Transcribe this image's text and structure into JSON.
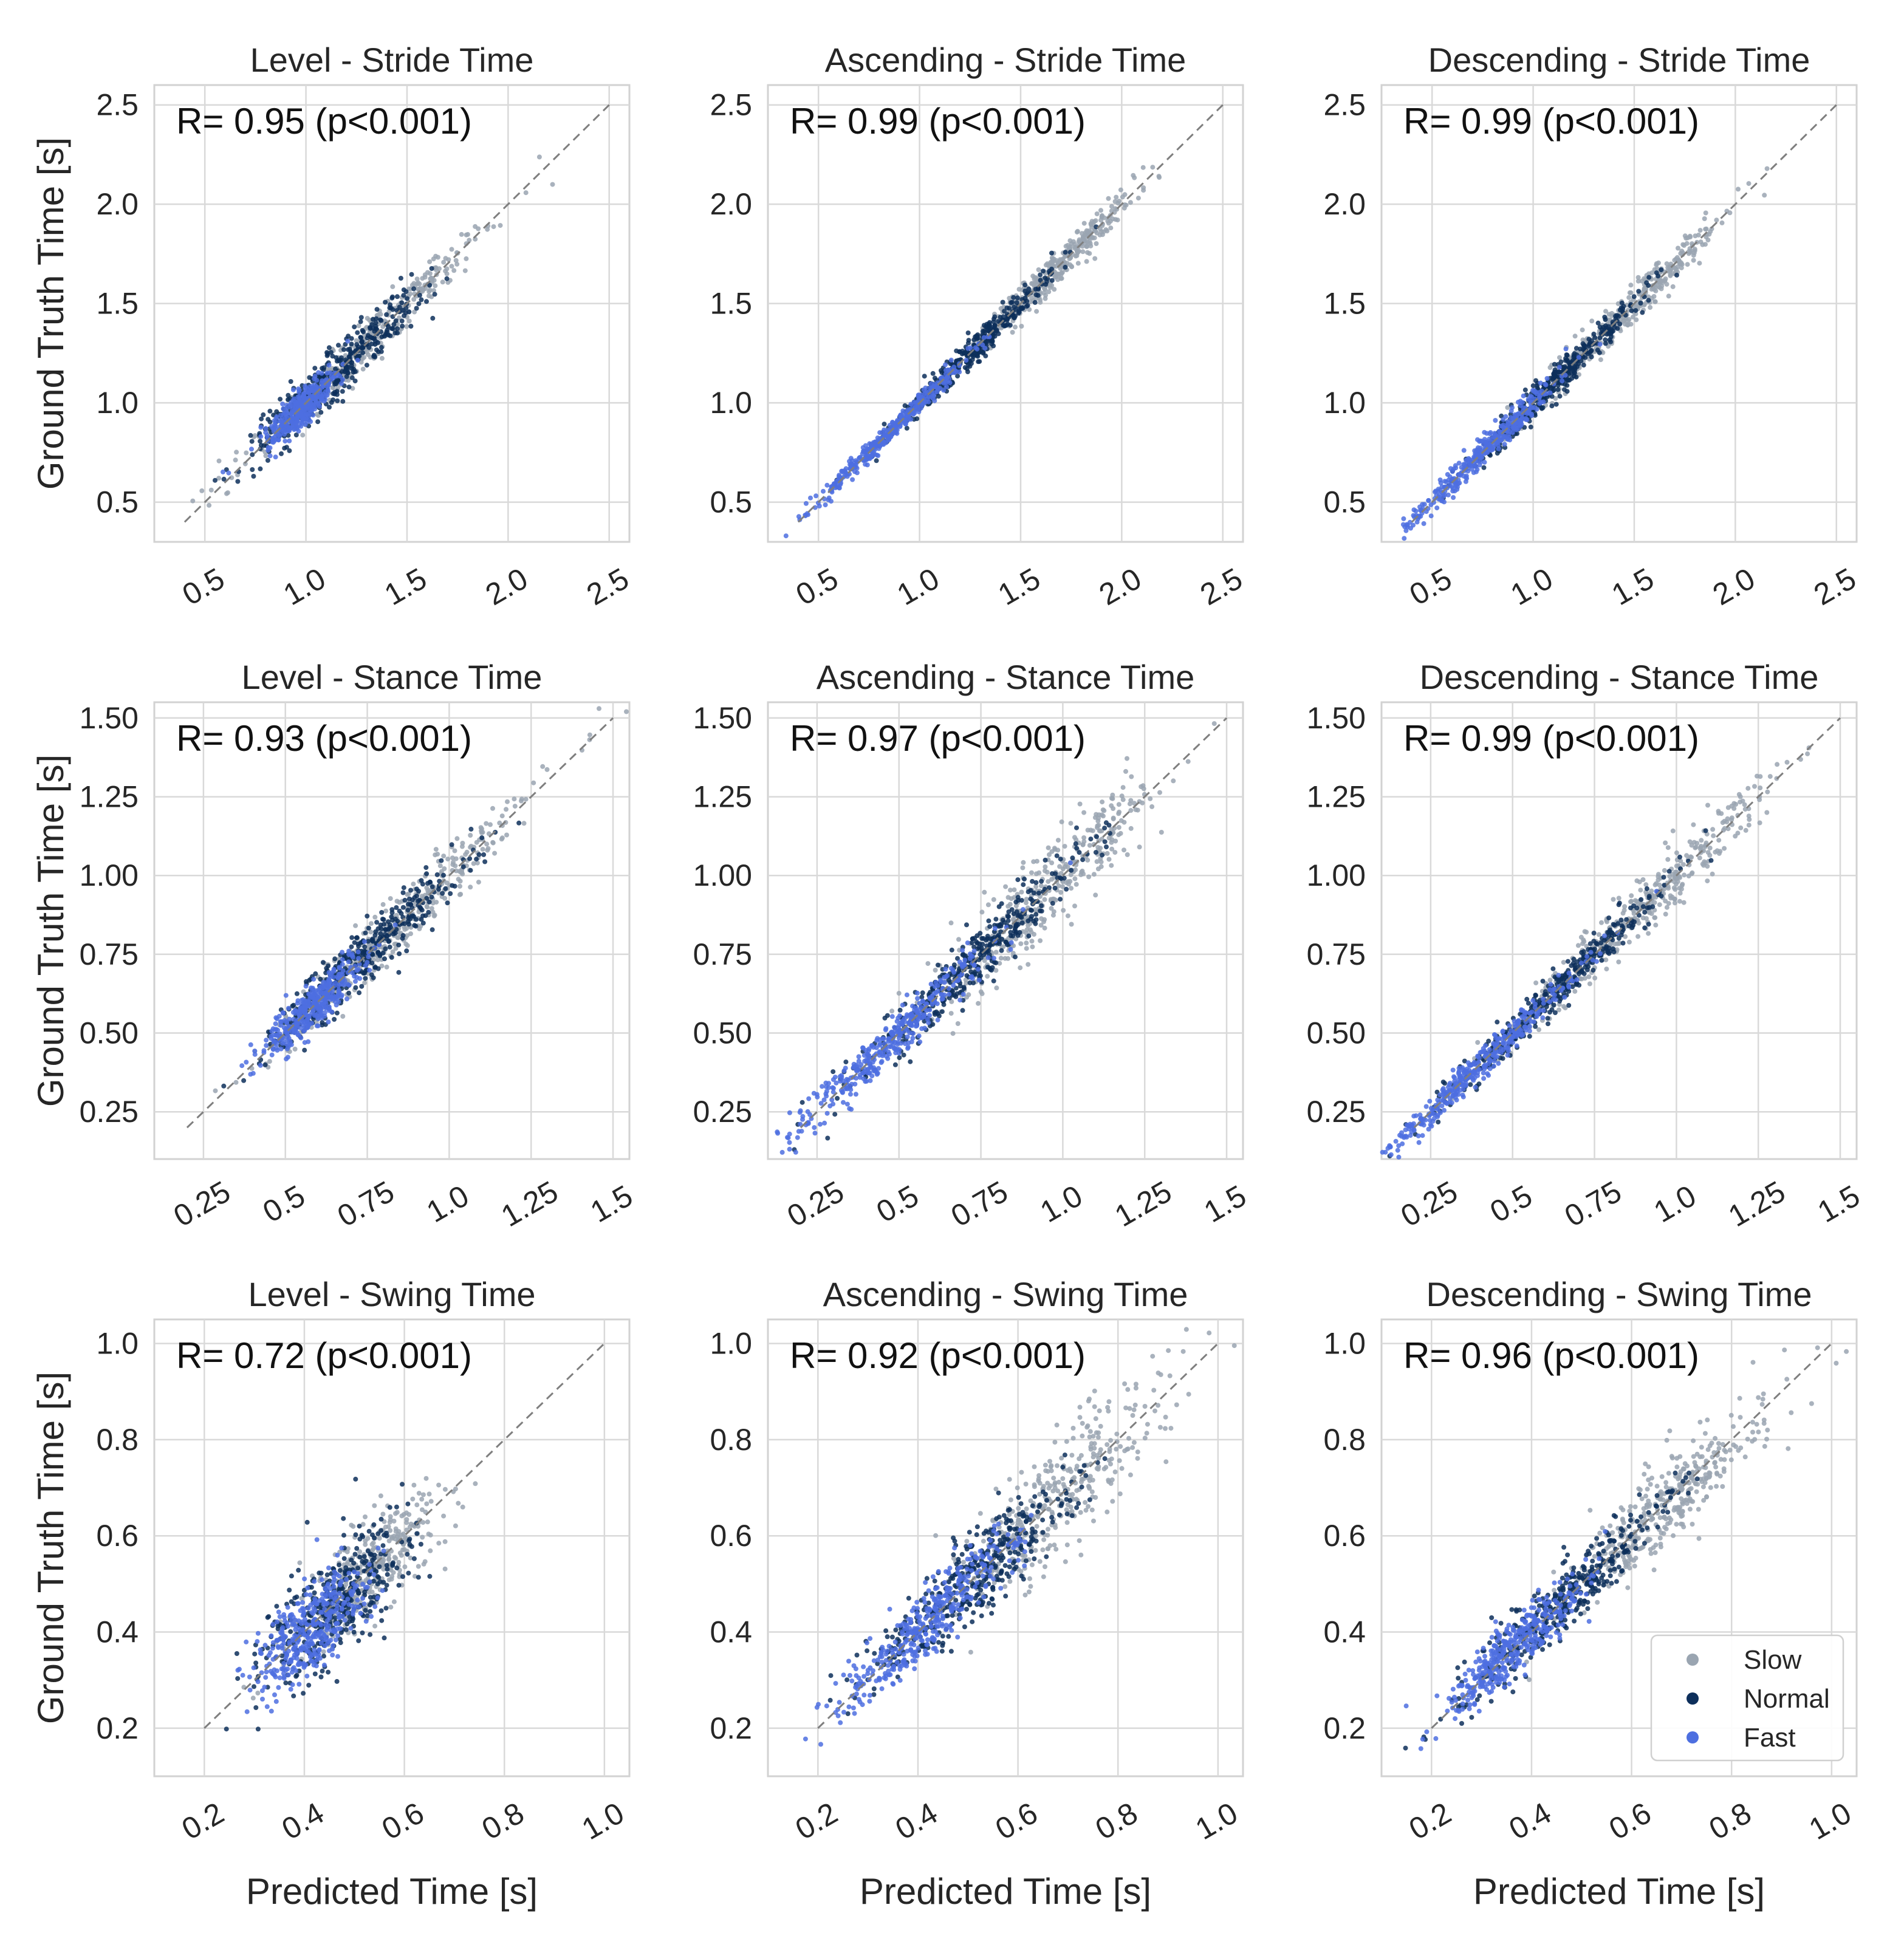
{
  "chart_data": [
    {
      "type": "scatter",
      "title": "Level - Stride Time",
      "annotation": "R= 0.95 (p<0.001)",
      "xlim": [
        0.25,
        2.6
      ],
      "ylim": [
        0.3,
        2.6
      ],
      "xticks": [
        0.5,
        1.0,
        1.5,
        2.0,
        2.5
      ],
      "xtick_labels": [
        "0.5",
        "1.0",
        "1.5",
        "2.0",
        "2.5"
      ],
      "yticks": [
        0.5,
        1.0,
        1.5,
        2.0,
        2.5
      ],
      "ytick_labels": [
        "0.5",
        "1.0",
        "1.5",
        "2.0",
        "2.5"
      ],
      "xlabel": "",
      "ylabel": "Ground Truth Time [s]",
      "identity_line": [
        0.4,
        2.5
      ],
      "series": [
        {
          "name": "Slow",
          "color": "#9aa5b1",
          "center": [
            1.3,
            1.3
          ],
          "x_spread": 0.3,
          "noise": 0.05
        },
        {
          "name": "Normal",
          "color": "#0d2f5b",
          "center": [
            1.15,
            1.15
          ],
          "x_spread": 0.2,
          "noise": 0.06
        },
        {
          "name": "Fast",
          "color": "#4d6fe0",
          "center": [
            0.97,
            0.97
          ],
          "x_spread": 0.08,
          "noise": 0.04
        }
      ],
      "grid": true
    },
    {
      "type": "scatter",
      "title": "Ascending - Stride Time",
      "annotation": "R= 0.99 (p<0.001)",
      "xlim": [
        0.25,
        2.6
      ],
      "ylim": [
        0.3,
        2.6
      ],
      "xticks": [
        0.5,
        1.0,
        1.5,
        2.0,
        2.5
      ],
      "xtick_labels": [
        "0.5",
        "1.0",
        "1.5",
        "2.0",
        "2.5"
      ],
      "yticks": [
        0.5,
        1.0,
        1.5,
        2.0,
        2.5
      ],
      "ytick_labels": [
        "0.5",
        "1.0",
        "1.5",
        "2.0",
        "2.5"
      ],
      "xlabel": "",
      "ylabel": "",
      "identity_line": [
        0.4,
        2.5
      ],
      "series": [
        {
          "name": "Slow",
          "color": "#9aa5b1",
          "center": [
            1.65,
            1.65
          ],
          "x_spread": 0.2,
          "noise": 0.04
        },
        {
          "name": "Normal",
          "color": "#0d2f5b",
          "center": [
            1.25,
            1.25
          ],
          "x_spread": 0.2,
          "noise": 0.03
        },
        {
          "name": "Fast",
          "color": "#4d6fe0",
          "center": [
            0.85,
            0.85
          ],
          "x_spread": 0.2,
          "noise": 0.02
        }
      ],
      "grid": true
    },
    {
      "type": "scatter",
      "title": "Descending - Stride Time",
      "annotation": "R= 0.99 (p<0.001)",
      "xlim": [
        0.25,
        2.6
      ],
      "ylim": [
        0.3,
        2.6
      ],
      "xticks": [
        0.5,
        1.0,
        1.5,
        2.0,
        2.5
      ],
      "xtick_labels": [
        "0.5",
        "1.0",
        "1.5",
        "2.0",
        "2.5"
      ],
      "yticks": [
        0.5,
        1.0,
        1.5,
        2.0,
        2.5
      ],
      "ytick_labels": [
        "0.5",
        "1.0",
        "1.5",
        "2.0",
        "2.5"
      ],
      "xlabel": "",
      "ylabel": "",
      "identity_line": [
        0.4,
        2.5
      ],
      "series": [
        {
          "name": "Slow",
          "color": "#9aa5b1",
          "center": [
            1.45,
            1.45
          ],
          "x_spread": 0.25,
          "noise": 0.04
        },
        {
          "name": "Normal",
          "color": "#0d2f5b",
          "center": [
            1.1,
            1.1
          ],
          "x_spread": 0.2,
          "noise": 0.035
        },
        {
          "name": "Fast",
          "color": "#4d6fe0",
          "center": [
            0.75,
            0.75
          ],
          "x_spread": 0.2,
          "noise": 0.03
        }
      ],
      "grid": true
    },
    {
      "type": "scatter",
      "title": "Level - Stance Time",
      "annotation": "R= 0.93 (p<0.001)",
      "xlim": [
        0.1,
        1.55
      ],
      "ylim": [
        0.1,
        1.55
      ],
      "xticks": [
        0.25,
        0.5,
        0.75,
        1.0,
        1.25,
        1.5
      ],
      "xtick_labels": [
        "0.25",
        "0.5",
        "0.75",
        "1.0",
        "1.25",
        "1.5"
      ],
      "yticks": [
        0.25,
        0.5,
        0.75,
        1.0,
        1.25,
        1.5
      ],
      "ytick_labels": [
        "0.25",
        "0.50",
        "0.75",
        "1.00",
        "1.25",
        "1.50"
      ],
      "xlabel": "",
      "ylabel": "Ground Truth Time [s]",
      "identity_line": [
        0.2,
        1.5
      ],
      "series": [
        {
          "name": "Slow",
          "color": "#9aa5b1",
          "center": [
            0.85,
            0.85
          ],
          "x_spread": 0.2,
          "noise": 0.04
        },
        {
          "name": "Normal",
          "color": "#0d2f5b",
          "center": [
            0.73,
            0.73
          ],
          "x_spread": 0.15,
          "noise": 0.04
        },
        {
          "name": "Fast",
          "color": "#4d6fe0",
          "center": [
            0.58,
            0.58
          ],
          "x_spread": 0.07,
          "noise": 0.03
        }
      ],
      "grid": true
    },
    {
      "type": "scatter",
      "title": "Ascending - Stance Time",
      "annotation": "R= 0.97 (p<0.001)",
      "xlim": [
        0.1,
        1.55
      ],
      "ylim": [
        0.1,
        1.55
      ],
      "xticks": [
        0.25,
        0.5,
        0.75,
        1.0,
        1.25,
        1.5
      ],
      "xtick_labels": [
        "0.25",
        "0.5",
        "0.75",
        "1.0",
        "1.25",
        "1.5"
      ],
      "yticks": [
        0.25,
        0.5,
        0.75,
        1.0,
        1.25,
        1.5
      ],
      "ytick_labels": [
        "0.25",
        "0.50",
        "0.75",
        "1.00",
        "1.25",
        "1.50"
      ],
      "xlabel": "",
      "ylabel": "",
      "identity_line": [
        0.2,
        1.5
      ],
      "series": [
        {
          "name": "Slow",
          "color": "#9aa5b1",
          "center": [
            0.95,
            0.97
          ],
          "x_spread": 0.17,
          "noise": 0.06
        },
        {
          "name": "Normal",
          "color": "#0d2f5b",
          "center": [
            0.7,
            0.7
          ],
          "x_spread": 0.17,
          "noise": 0.04
        },
        {
          "name": "Fast",
          "color": "#4d6fe0",
          "center": [
            0.45,
            0.45
          ],
          "x_spread": 0.16,
          "noise": 0.03
        }
      ],
      "grid": true
    },
    {
      "type": "scatter",
      "title": "Descending - Stance Time",
      "annotation": "R= 0.99 (p<0.001)",
      "xlim": [
        0.1,
        1.55
      ],
      "ylim": [
        0.1,
        1.55
      ],
      "xticks": [
        0.25,
        0.5,
        0.75,
        1.0,
        1.25,
        1.5
      ],
      "xtick_labels": [
        "0.25",
        "0.5",
        "0.75",
        "1.0",
        "1.25",
        "1.5"
      ],
      "yticks": [
        0.25,
        0.5,
        0.75,
        1.0,
        1.25,
        1.5
      ],
      "ytick_labels": [
        "0.25",
        "0.50",
        "0.75",
        "1.00",
        "1.25",
        "1.50"
      ],
      "xlabel": "",
      "ylabel": "",
      "identity_line": [
        0.2,
        1.5
      ],
      "series": [
        {
          "name": "Slow",
          "color": "#9aa5b1",
          "center": [
            0.9,
            0.9
          ],
          "x_spread": 0.2,
          "noise": 0.04
        },
        {
          "name": "Normal",
          "color": "#0d2f5b",
          "center": [
            0.62,
            0.62
          ],
          "x_spread": 0.17,
          "noise": 0.025
        },
        {
          "name": "Fast",
          "color": "#4d6fe0",
          "center": [
            0.38,
            0.38
          ],
          "x_spread": 0.16,
          "noise": 0.02
        }
      ],
      "grid": true
    },
    {
      "type": "scatter",
      "title": "Level - Swing Time",
      "annotation": "R= 0.72 (p<0.001)",
      "xlim": [
        0.1,
        1.05
      ],
      "ylim": [
        0.1,
        1.05
      ],
      "xticks": [
        0.2,
        0.4,
        0.6,
        0.8,
        1.0
      ],
      "xtick_labels": [
        "0.2",
        "0.4",
        "0.6",
        "0.8",
        "1.0"
      ],
      "yticks": [
        0.2,
        0.4,
        0.6,
        0.8,
        1.0
      ],
      "ytick_labels": [
        "0.2",
        "0.4",
        "0.6",
        "0.8",
        "1.0"
      ],
      "xlabel": "Predicted Time [s]",
      "ylabel": "Ground Truth Time [s]",
      "identity_line": [
        0.2,
        1.0
      ],
      "series": [
        {
          "name": "Slow",
          "color": "#9aa5b1",
          "center": [
            0.52,
            0.5
          ],
          "x_spread": 0.07,
          "noise": 0.04
        },
        {
          "name": "Normal",
          "color": "#0d2f5b",
          "center": [
            0.46,
            0.46
          ],
          "x_spread": 0.07,
          "noise": 0.05
        },
        {
          "name": "Fast",
          "color": "#4d6fe0",
          "center": [
            0.41,
            0.4
          ],
          "x_spread": 0.05,
          "noise": 0.04
        }
      ],
      "grid": true
    },
    {
      "type": "scatter",
      "title": "Ascending - Swing Time",
      "annotation": "R= 0.92 (p<0.001)",
      "xlim": [
        0.1,
        1.05
      ],
      "ylim": [
        0.1,
        1.05
      ],
      "xticks": [
        0.2,
        0.4,
        0.6,
        0.8,
        1.0
      ],
      "xtick_labels": [
        "0.2",
        "0.4",
        "0.6",
        "0.8",
        "1.0"
      ],
      "yticks": [
        0.2,
        0.4,
        0.6,
        0.8,
        1.0
      ],
      "ytick_labels": [
        "0.2",
        "0.4",
        "0.6",
        "0.8",
        "1.0"
      ],
      "xlabel": "Predicted Time [s]",
      "ylabel": "",
      "identity_line": [
        0.2,
        1.0
      ],
      "series": [
        {
          "name": "Slow",
          "color": "#9aa5b1",
          "center": [
            0.68,
            0.66
          ],
          "x_spread": 0.1,
          "noise": 0.05
        },
        {
          "name": "Normal",
          "color": "#0d2f5b",
          "center": [
            0.5,
            0.5
          ],
          "x_spread": 0.1,
          "noise": 0.04
        },
        {
          "name": "Fast",
          "color": "#4d6fe0",
          "center": [
            0.42,
            0.42
          ],
          "x_spread": 0.09,
          "noise": 0.03
        }
      ],
      "grid": true
    },
    {
      "type": "scatter",
      "title": "Descending - Swing Time",
      "annotation": "R= 0.96 (p<0.001)",
      "xlim": [
        0.1,
        1.05
      ],
      "ylim": [
        0.1,
        1.05
      ],
      "xticks": [
        0.2,
        0.4,
        0.6,
        0.8,
        1.0
      ],
      "xtick_labels": [
        "0.2",
        "0.4",
        "0.6",
        "0.8",
        "1.0"
      ],
      "yticks": [
        0.2,
        0.4,
        0.6,
        0.8,
        1.0
      ],
      "ytick_labels": [
        "0.2",
        "0.4",
        "0.6",
        "0.8",
        "1.0"
      ],
      "xlabel": "Predicted Time [s]",
      "ylabel": "",
      "identity_line": [
        0.2,
        1.0
      ],
      "series": [
        {
          "name": "Slow",
          "color": "#9aa5b1",
          "center": [
            0.66,
            0.65
          ],
          "x_spread": 0.1,
          "noise": 0.04
        },
        {
          "name": "Normal",
          "color": "#0d2f5b",
          "center": [
            0.46,
            0.46
          ],
          "x_spread": 0.1,
          "noise": 0.03
        },
        {
          "name": "Fast",
          "color": "#4d6fe0",
          "center": [
            0.36,
            0.36
          ],
          "x_spread": 0.07,
          "noise": 0.025
        }
      ],
      "grid": true
    }
  ],
  "legend": {
    "placement": "lower-right",
    "items": [
      {
        "label": "Slow",
        "color": "#9aa5b1"
      },
      {
        "label": "Normal",
        "color": "#0d2f5b"
      },
      {
        "label": "Fast",
        "color": "#4d6fe0"
      }
    ]
  }
}
